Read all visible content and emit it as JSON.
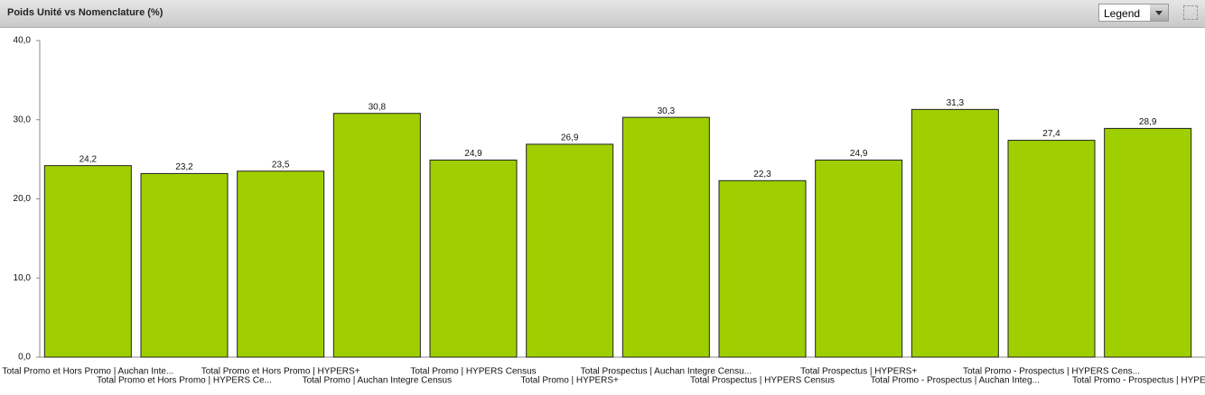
{
  "header": {
    "title": "Poids Unité vs Nomenclature (%)",
    "legend": "Legend"
  },
  "chart_data": {
    "type": "bar",
    "categories": [
      "Total Promo et Hors Promo | Auchan Inte...",
      "Total Promo et Hors Promo | HYPERS Ce...",
      "Total Promo et Hors Promo | HYPERS+",
      "Total Promo | Auchan Integre Census",
      "Total Promo | HYPERS Census",
      "Total Promo | HYPERS+",
      "Total Prospectus | Auchan Integre Censu...",
      "Total Prospectus | HYPERS Census",
      "Total Prospectus | HYPERS+",
      "Total Promo - Prospectus | Auchan Integ...",
      "Total Promo - Prospectus | HYPERS Cens...",
      "Total Promo - Prospectus | HYPERS+"
    ],
    "values": [
      24.2,
      23.2,
      23.5,
      30.8,
      24.9,
      26.9,
      30.3,
      22.3,
      24.9,
      31.3,
      27.4,
      28.9
    ],
    "value_labels": [
      "24,2",
      "23,2",
      "23,5",
      "30,8",
      "24,9",
      "26,9",
      "30,3",
      "22,3",
      "24,9",
      "31,3",
      "27,4",
      "28,9"
    ],
    "color": "#9fcf00",
    "ylim": [
      0,
      40
    ],
    "yticks": [
      {
        "value": 0,
        "label": "0,0"
      },
      {
        "value": 10,
        "label": "10,0"
      },
      {
        "value": 20,
        "label": "20,0"
      },
      {
        "value": 30,
        "label": "30,0"
      },
      {
        "value": 40,
        "label": "40,0"
      }
    ]
  }
}
